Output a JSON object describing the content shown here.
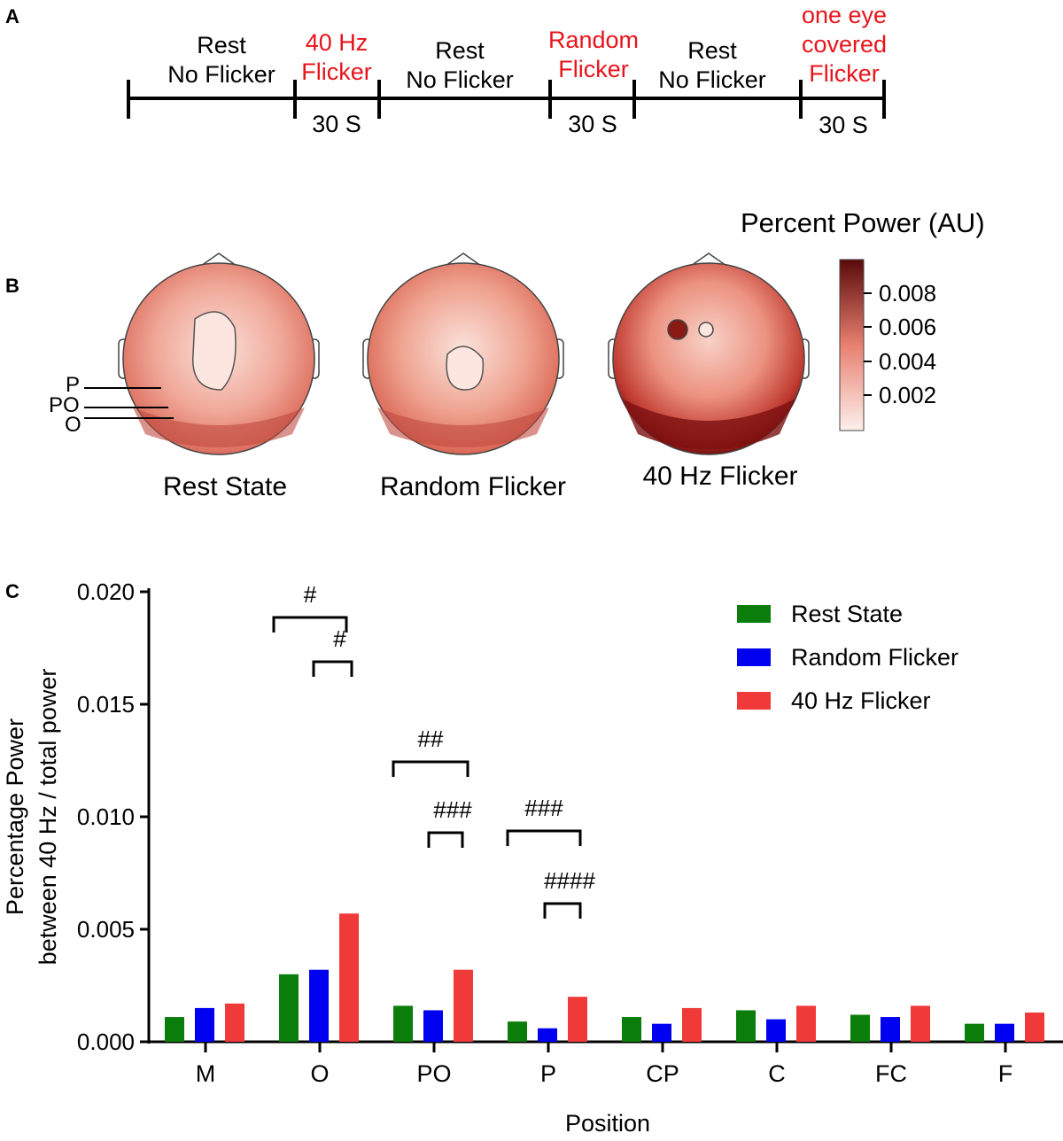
{
  "panel_a": {
    "letter": "A",
    "segments": [
      {
        "line1": "Rest",
        "line2": "No Flicker",
        "highlight": false
      },
      {
        "line1": "40 Hz",
        "line2": "Flicker",
        "highlight": true,
        "duration": "30 S"
      },
      {
        "line1": "Rest",
        "line2": "No Flicker",
        "highlight": false
      },
      {
        "line1": "Random",
        "line2": "Flicker",
        "highlight": true,
        "duration": "30 S"
      },
      {
        "line1": "Rest",
        "line2": "No Flicker",
        "highlight": false
      },
      {
        "line1": "one eye",
        "line1b": "covered",
        "line2": "Flicker",
        "highlight": true,
        "duration": "30 S"
      }
    ],
    "highlight_color": "#e8141c"
  },
  "panel_b": {
    "letter": "B",
    "colorbar_title": "Percent Power (AU)",
    "colorbar_ticks": [
      "0.008",
      "0.006",
      "0.004",
      "0.002"
    ],
    "electrode_labels": [
      "P",
      "PO",
      "O"
    ],
    "maps": [
      {
        "title": "Rest State"
      },
      {
        "title": "Random Flicker"
      },
      {
        "title": "40 Hz Flicker"
      }
    ]
  },
  "chart_data": {
    "type": "bar",
    "panel_letter": "C",
    "xlabel": "Position",
    "ylabel_line1": "Percentage Power",
    "ylabel_line2": "between 40 Hz / total power",
    "ylim": [
      0,
      0.02
    ],
    "yticks": [
      "0.000",
      "0.005",
      "0.010",
      "0.015",
      "0.020"
    ],
    "categories": [
      "M",
      "O",
      "PO",
      "P",
      "CP",
      "C",
      "FC",
      "F"
    ],
    "legend_position": "top-right",
    "series": [
      {
        "name": "Rest State",
        "color": "#0a7d0a",
        "values": [
          0.0011,
          0.003,
          0.0016,
          0.0009,
          0.0011,
          0.0014,
          0.0012,
          0.0008
        ]
      },
      {
        "name": "Random Flicker",
        "color": "#0000f0",
        "values": [
          0.0015,
          0.0032,
          0.0014,
          0.0006,
          0.0008,
          0.001,
          0.0011,
          0.0008
        ]
      },
      {
        "name": "40 Hz Flicker",
        "color": "#f03a3a",
        "values": [
          0.0017,
          0.0057,
          0.0032,
          0.002,
          0.0015,
          0.0016,
          0.0016,
          0.0013
        ]
      }
    ],
    "annotations": [
      {
        "label": "#",
        "category": "O",
        "from": "Rest State",
        "to": "40 Hz Flicker"
      },
      {
        "label": "#",
        "category": "O",
        "from": "Random Flicker",
        "to": "40 Hz Flicker"
      },
      {
        "label": "##",
        "category": "PO",
        "from": "Rest State",
        "to": "40 Hz Flicker"
      },
      {
        "label": "###",
        "category": "PO",
        "from": "Random Flicker",
        "to": "40 Hz Flicker"
      },
      {
        "label": "###",
        "category": "P",
        "from": "Rest State",
        "to": "40 Hz Flicker"
      },
      {
        "label": "####",
        "category": "P",
        "from": "Random Flicker",
        "to": "40 Hz Flicker"
      }
    ]
  }
}
